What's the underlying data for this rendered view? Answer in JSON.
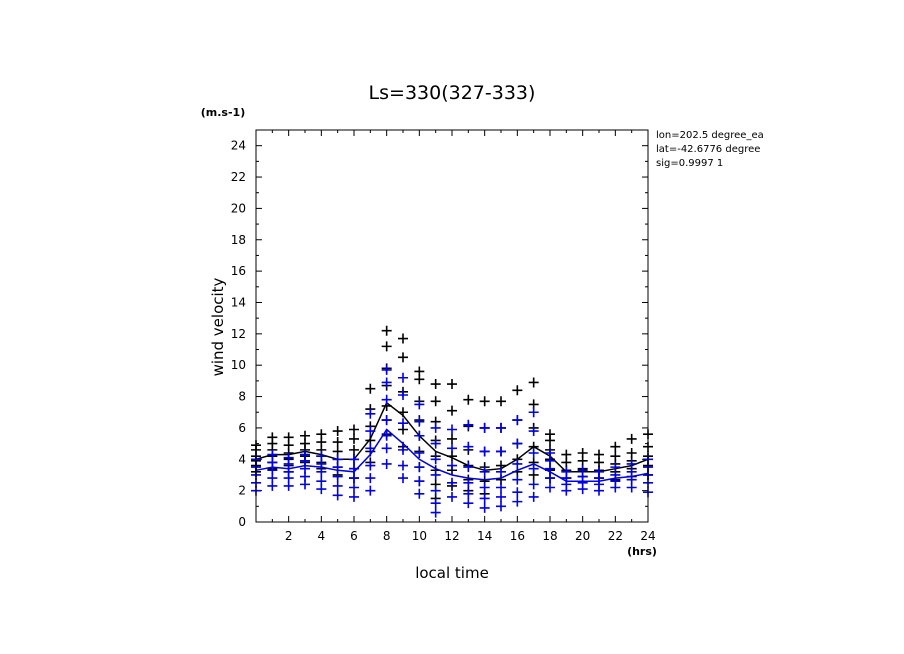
{
  "chart_data": {
    "type": "scatter",
    "title": "Ls=330(327-333)",
    "xlabel": "local time",
    "ylabel": "wind velocity",
    "x_unit": "(hrs)",
    "y_unit": "(m.s-1)",
    "xlim": [
      0,
      24
    ],
    "ylim": [
      0,
      25
    ],
    "x_ticks": [
      2,
      4,
      6,
      8,
      10,
      12,
      14,
      16,
      18,
      20,
      22,
      24
    ],
    "y_ticks": [
      0,
      2,
      4,
      6,
      8,
      10,
      12,
      14,
      16,
      18,
      20,
      22,
      24
    ],
    "annotations": [
      "lon=202.5 degree_ea",
      "lat=-42.6776 degree",
      "sig=0.9997 1"
    ],
    "hours": [
      0,
      1,
      2,
      3,
      4,
      5,
      6,
      7,
      8,
      9,
      10,
      11,
      12,
      13,
      14,
      15,
      16,
      17,
      18,
      19,
      20,
      21,
      22,
      23,
      24
    ],
    "series": [
      {
        "color": "#000000",
        "mean": [
          4.0,
          4.3,
          4.3,
          4.5,
          4.3,
          4.0,
          4.0,
          5.3,
          7.6,
          6.8,
          5.5,
          4.5,
          4.1,
          3.6,
          3.3,
          3.4,
          4.0,
          4.8,
          4.2,
          3.2,
          3.2,
          3.2,
          3.4,
          3.6,
          4.0
        ],
        "points": [
          [
            4.9,
            4.6,
            4.2,
            3.9,
            3.6,
            3.2
          ],
          [
            5.4,
            5.0,
            4.6,
            4.2,
            3.8,
            3.4
          ],
          [
            5.4,
            4.9,
            4.4,
            4.0,
            3.6,
            3.2
          ],
          [
            5.5,
            5.0,
            4.6,
            4.2,
            3.8
          ],
          [
            5.6,
            5.1,
            4.6,
            4.2,
            3.8,
            3.4
          ],
          [
            5.8,
            5.1,
            4.5,
            4.0,
            3.5,
            3.0
          ],
          [
            5.9,
            5.3,
            4.6,
            4.0,
            3.4,
            2.8
          ],
          [
            8.5,
            7.2,
            6.1,
            5.2,
            4.5,
            3.8
          ],
          [
            12.2,
            11.2,
            9.8,
            8.7,
            7.4,
            6.5,
            5.6
          ],
          [
            11.7,
            10.5,
            8.3,
            7.0,
            5.9,
            4.8
          ],
          [
            9.6,
            9.1,
            7.7,
            6.5,
            5.5,
            4.5,
            3.5,
            2.6
          ],
          [
            8.8,
            7.7,
            6.4,
            5.2,
            4.2,
            3.3,
            2.4,
            1.5
          ],
          [
            8.8,
            7.1,
            5.3,
            4.2,
            3.3,
            2.3
          ],
          [
            7.8,
            6.1,
            4.6,
            3.6,
            2.7,
            2.0
          ],
          [
            7.7,
            6.0,
            4.5,
            3.5,
            2.6,
            1.8
          ],
          [
            7.7,
            6.0,
            4.5,
            3.6,
            2.7
          ],
          [
            8.4,
            6.5,
            5.0,
            4.0,
            3.2
          ],
          [
            8.9,
            7.5,
            6.0,
            4.8,
            3.8,
            3.0
          ],
          [
            5.6,
            5.2,
            4.6,
            4.0,
            3.3,
            2.8
          ],
          [
            4.3,
            3.8,
            3.3,
            2.8
          ],
          [
            4.4,
            3.9,
            3.4,
            2.9
          ],
          [
            4.3,
            3.8,
            3.3,
            2.8
          ],
          [
            4.8,
            4.2,
            3.7,
            3.2,
            2.7
          ],
          [
            5.3,
            4.4,
            3.9,
            3.4,
            2.9
          ],
          [
            5.6,
            4.8,
            4.2,
            3.6,
            3.0
          ]
        ]
      },
      {
        "color": "#0000dd",
        "mean": [
          3.3,
          3.5,
          3.4,
          3.6,
          3.5,
          3.3,
          3.2,
          4.3,
          5.9,
          5.0,
          4.0,
          3.4,
          3.0,
          2.8,
          2.7,
          2.8,
          3.3,
          3.7,
          3.2,
          2.6,
          2.6,
          2.6,
          2.8,
          2.9,
          3.1
        ],
        "points": [
          [
            4.0,
            3.5,
            3.0,
            2.5,
            2.0
          ],
          [
            4.3,
            3.8,
            3.3,
            2.8,
            2.3
          ],
          [
            4.1,
            3.7,
            3.2,
            2.8,
            2.3
          ],
          [
            4.3,
            3.9,
            3.4,
            2.9,
            2.4
          ],
          [
            4.2,
            3.7,
            3.2,
            2.6,
            2.1
          ],
          [
            4.0,
            3.5,
            2.9,
            2.3,
            1.7
          ],
          [
            4.0,
            3.4,
            2.8,
            2.2,
            1.6
          ],
          [
            6.9,
            5.8,
            4.7,
            3.6,
            2.8,
            2.0
          ],
          [
            9.7,
            8.9,
            7.8,
            6.5,
            5.5,
            4.7,
            3.7
          ],
          [
            9.2,
            8.1,
            6.3,
            4.6,
            3.6,
            2.8
          ],
          [
            7.5,
            6.4,
            5.5,
            4.4,
            3.5,
            2.6,
            1.8
          ],
          [
            6.0,
            5.0,
            4.0,
            3.0,
            2.0,
            1.2,
            0.6
          ],
          [
            5.9,
            4.7,
            3.6,
            2.5,
            1.6
          ],
          [
            6.2,
            4.8,
            3.5,
            2.5,
            1.8,
            1.2
          ],
          [
            6.0,
            4.5,
            3.2,
            2.2,
            1.5,
            0.9
          ],
          [
            6.0,
            4.5,
            3.2,
            2.2,
            1.6,
            1.0
          ],
          [
            6.5,
            5.0,
            3.7,
            2.7,
            1.9,
            1.3
          ],
          [
            7.0,
            5.8,
            4.4,
            3.4,
            2.4,
            1.6
          ],
          [
            4.4,
            3.9,
            3.4,
            2.8,
            2.2
          ],
          [
            3.2,
            2.8,
            2.4,
            2.0
          ],
          [
            3.3,
            2.9,
            2.5,
            2.1
          ],
          [
            3.2,
            2.8,
            2.4,
            2.0
          ],
          [
            3.5,
            3.0,
            2.6,
            2.2
          ],
          [
            3.7,
            3.2,
            2.7,
            2.2
          ],
          [
            4.0,
            3.5,
            3.0,
            2.5,
            1.9
          ]
        ]
      }
    ]
  }
}
